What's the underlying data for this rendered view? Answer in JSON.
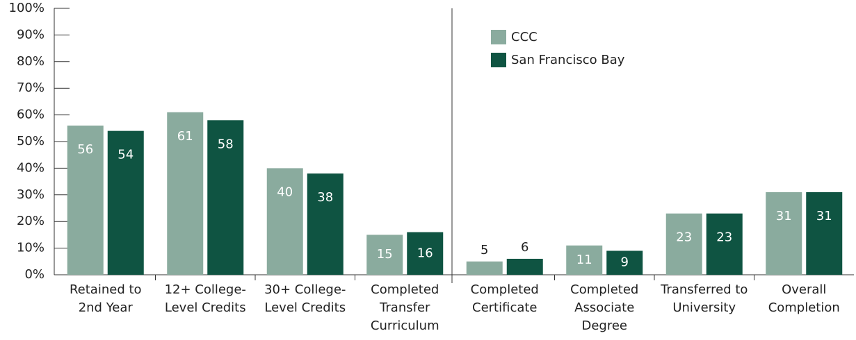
{
  "chart_data": {
    "type": "bar",
    "categories": [
      [
        "Retained to",
        "2nd Year"
      ],
      [
        "12+ College-",
        "Level Credits"
      ],
      [
        "30+ College-",
        "Level Credits"
      ],
      [
        "Completed",
        "Transfer",
        "Curriculum"
      ],
      [
        "Completed",
        "Certificate"
      ],
      [
        "Completed",
        "Associate",
        "Degree"
      ],
      [
        "Transferred to",
        "University"
      ],
      [
        "Overall",
        "Completion"
      ]
    ],
    "series": [
      {
        "name": "CCC",
        "color": "#8aab9e",
        "values": [
          56,
          61,
          40,
          15,
          5,
          11,
          23,
          31
        ]
      },
      {
        "name": "San Francisco Bay",
        "color": "#0f5442",
        "values": [
          54,
          58,
          38,
          16,
          6,
          9,
          23,
          31
        ]
      }
    ],
    "ylim": [
      0,
      100
    ],
    "yticks": [
      {
        "value": 0,
        "label": "0%"
      },
      {
        "value": 10,
        "label": "10%"
      },
      {
        "value": 20,
        "label": "20%"
      },
      {
        "value": 30,
        "label": "30%"
      },
      {
        "value": 40,
        "label": "40%"
      },
      {
        "value": 50,
        "label": "50%"
      },
      {
        "value": 60,
        "label": "60%"
      },
      {
        "value": 70,
        "label": "70%"
      },
      {
        "value": 80,
        "label": "80%"
      },
      {
        "value": 90,
        "label": "90%"
      },
      {
        "value": 100,
        "label": "100%"
      }
    ],
    "grid": false
  }
}
